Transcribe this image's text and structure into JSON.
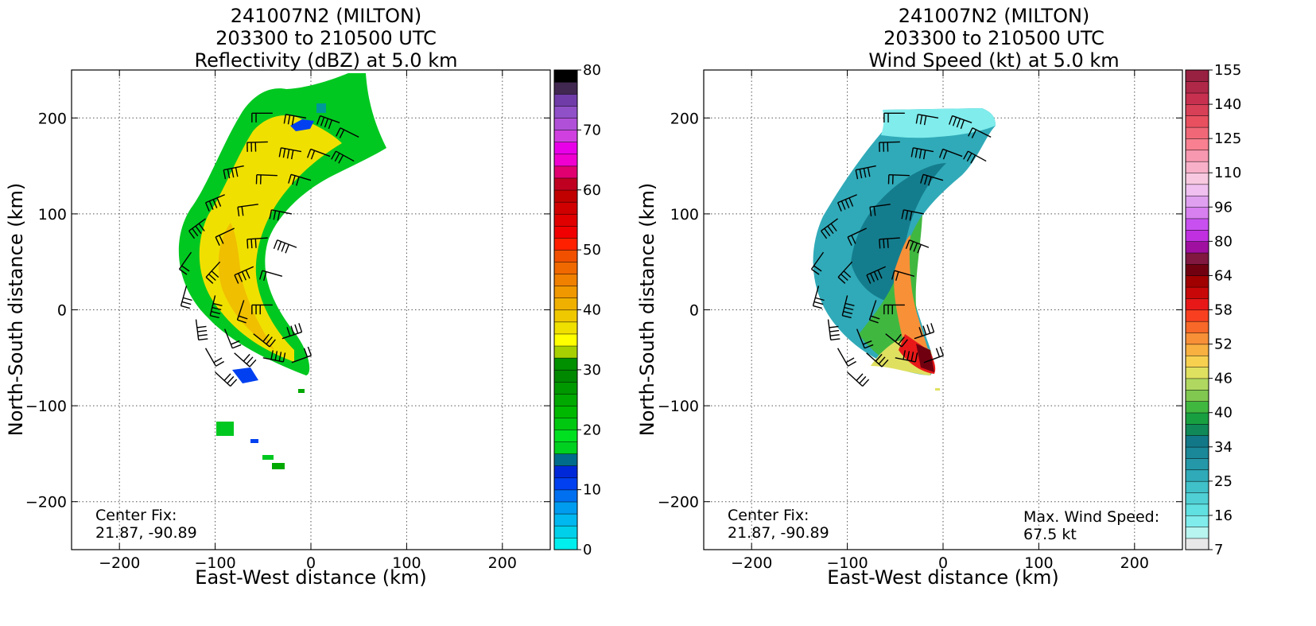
{
  "panels": [
    {
      "title_lines": [
        "241007N2 (MILTON)",
        "203300 to 210500 UTC",
        "Reflectivity (dBZ) at 5.0 km"
      ],
      "xlabel": "East-West distance (km)",
      "ylabel": "North-South distance (km)",
      "center_fix_label": "Center Fix:",
      "center_fix_value": "21.87, -90.89",
      "max_wind_label": "",
      "max_wind_value": "",
      "colorbar": {
        "tick_labels": [
          "0",
          "10",
          "20",
          "30",
          "40",
          "50",
          "60",
          "70",
          "80"
        ],
        "colors": [
          "#00eeee",
          "#00d0ea",
          "#00b8f0",
          "#009cf0",
          "#0070f0",
          "#0040f0",
          "#0028d8",
          "#006b8a",
          "#00d020",
          "#00e020",
          "#00c810",
          "#00b800",
          "#00a800",
          "#009800",
          "#008800",
          "#009000",
          "#a8d000",
          "#ffff00",
          "#f0e000",
          "#f0c800",
          "#f0b000",
          "#f09800",
          "#f08000",
          "#f06800",
          "#f05000",
          "#ff2000",
          "#f00000",
          "#e00000",
          "#d00000",
          "#c00000",
          "#c00020",
          "#e00070",
          "#f000d0",
          "#e800e8",
          "#d040e0",
          "#b050d8",
          "#9050c8",
          "#703ca8",
          "#402850",
          "#000000"
        ]
      }
    },
    {
      "title_lines": [
        "241007N2 (MILTON)",
        "203300 to 210500 UTC",
        "Wind Speed (kt) at 5.0 km"
      ],
      "xlabel": "East-West distance (km)",
      "ylabel": "North-South distance (km)",
      "center_fix_label": "Center Fix:",
      "center_fix_value": "21.87, -90.89",
      "max_wind_label": "Max. Wind Speed:",
      "max_wind_value": "67.5 kt",
      "colorbar": {
        "tick_labels": [
          "7",
          "16",
          "25",
          "34",
          "40",
          "46",
          "52",
          "58",
          "64",
          "80",
          "96",
          "110",
          "125",
          "140",
          "155"
        ],
        "colors": [
          "#e8e8e8",
          "#b8f4f0",
          "#80ecec",
          "#60e0e0",
          "#50d0d4",
          "#40c0c8",
          "#30aab8",
          "#2498a8",
          "#1a8898",
          "#127888",
          "#108858",
          "#18a040",
          "#40b840",
          "#80c850",
          "#b0d860",
          "#e0e060",
          "#f8d050",
          "#f8b040",
          "#f89038",
          "#f86828",
          "#f84020",
          "#e81818",
          "#c80808",
          "#a00000",
          "#700010",
          "#801840",
          "#a010a0",
          "#c030e0",
          "#c850f0",
          "#d880f0",
          "#e0a0f0",
          "#f0c0f0",
          "#f8c8e0",
          "#f8b0c8",
          "#f898b0",
          "#f88090",
          "#f06878",
          "#e85060",
          "#d84058",
          "#c83050",
          "#b02848",
          "#982040"
        ]
      }
    }
  ],
  "chart_data": [
    {
      "type": "heatmap",
      "title": "241007N2 (MILTON) 203300 to 210500 UTC Reflectivity (dBZ) at 5.0 km",
      "xlabel": "East-West distance (km)",
      "ylabel": "North-South distance (km)",
      "xlim": [
        -250,
        250
      ],
      "ylim": [
        -250,
        250
      ],
      "xticks": [
        -200,
        -100,
        0,
        100,
        200
      ],
      "yticks": [
        -200,
        -100,
        0,
        100,
        200
      ],
      "grid": true,
      "colorbar_range": [
        0,
        80
      ],
      "center_fix": [
        21.87,
        -90.89
      ]
    },
    {
      "type": "heatmap",
      "title": "241007N2 (MILTON) 203300 to 210500 UTC Wind Speed (kt) at 5.0 km",
      "xlabel": "East-West distance (km)",
      "ylabel": "North-South distance (km)",
      "xlim": [
        -250,
        250
      ],
      "ylim": [
        -250,
        250
      ],
      "xticks": [
        -200,
        -100,
        0,
        100,
        200
      ],
      "yticks": [
        -200,
        -100,
        0,
        100,
        200
      ],
      "grid": true,
      "colorbar_range": [
        7,
        155
      ],
      "center_fix": [
        21.87,
        -90.89
      ],
      "max_wind_speed_kt": 67.5
    }
  ]
}
